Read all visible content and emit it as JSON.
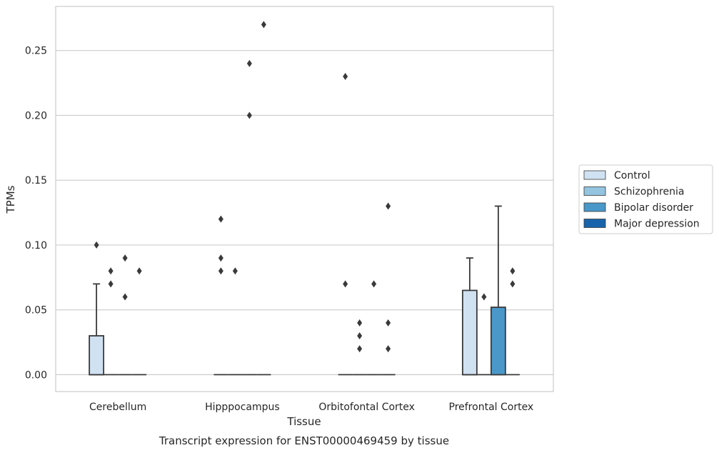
{
  "chart_data": {
    "type": "boxplot",
    "title": "",
    "caption": "Transcript expression for ENST00000469459 by tissue",
    "xlabel": "Tissue",
    "ylabel": "TPMs",
    "ylim": [
      -0.013,
      0.284
    ],
    "yticks": [
      0.0,
      0.05,
      0.1,
      0.15,
      0.2,
      0.25
    ],
    "ytick_labels": [
      "0.00",
      "0.05",
      "0.10",
      "0.15",
      "0.20",
      "0.25"
    ],
    "grid": "horizontal",
    "legend_position": "right-center",
    "categories": [
      "Cerebellum",
      "Hipppocampus",
      "Orbitofontal Cortex",
      "Prefrontal Cortex"
    ],
    "series": [
      {
        "name": "Control",
        "color": "#d0e1f2",
        "boxes": [
          {
            "q1": 0,
            "median": 0,
            "q3": 0.03,
            "whisker_low": 0,
            "whisker_high": 0.07,
            "outliers": [
              0.1
            ]
          },
          {
            "q1": 0,
            "median": 0,
            "q3": 0,
            "whisker_low": 0,
            "whisker_high": 0,
            "outliers": [
              0.08,
              0.09,
              0.12
            ]
          },
          {
            "q1": 0,
            "median": 0,
            "q3": 0,
            "whisker_low": 0,
            "whisker_high": 0,
            "outliers": [
              0.07,
              0.23
            ]
          },
          {
            "q1": 0,
            "median": 0,
            "q3": 0.065,
            "whisker_low": 0,
            "whisker_high": 0.09,
            "outliers": []
          }
        ]
      },
      {
        "name": "Schizophrenia",
        "color": "#94c4df",
        "boxes": [
          {
            "q1": 0,
            "median": 0,
            "q3": 0,
            "whisker_low": 0,
            "whisker_high": 0,
            "outliers": [
              0.07,
              0.08
            ]
          },
          {
            "q1": 0,
            "median": 0,
            "q3": 0,
            "whisker_low": 0,
            "whisker_high": 0,
            "outliers": [
              0.08
            ]
          },
          {
            "q1": 0,
            "median": 0,
            "q3": 0,
            "whisker_low": 0,
            "whisker_high": 0,
            "outliers": [
              0.02,
              0.03,
              0.04
            ]
          },
          {
            "q1": 0,
            "median": 0,
            "q3": 0,
            "whisker_low": 0,
            "whisker_high": 0,
            "outliers": [
              0.06
            ]
          }
        ]
      },
      {
        "name": "Bipolar disorder",
        "color": "#4a98c9",
        "boxes": [
          {
            "q1": 0,
            "median": 0,
            "q3": 0,
            "whisker_low": 0,
            "whisker_high": 0,
            "outliers": [
              0.06,
              0.09
            ]
          },
          {
            "q1": 0,
            "median": 0,
            "q3": 0,
            "whisker_low": 0,
            "whisker_high": 0,
            "outliers": [
              0.2,
              0.24
            ]
          },
          {
            "q1": 0,
            "median": 0,
            "q3": 0,
            "whisker_low": 0,
            "whisker_high": 0,
            "outliers": [
              0.07
            ]
          },
          {
            "q1": 0,
            "median": 0,
            "q3": 0.052,
            "whisker_low": 0,
            "whisker_high": 0.13,
            "outliers": []
          }
        ]
      },
      {
        "name": "Major depression",
        "color": "#1764ab",
        "boxes": [
          {
            "q1": 0,
            "median": 0,
            "q3": 0,
            "whisker_low": 0,
            "whisker_high": 0,
            "outliers": [
              0.08
            ]
          },
          {
            "q1": 0,
            "median": 0,
            "q3": 0,
            "whisker_low": 0,
            "whisker_high": 0,
            "outliers": [
              0.27
            ]
          },
          {
            "q1": 0,
            "median": 0,
            "q3": 0,
            "whisker_low": 0,
            "whisker_high": 0,
            "outliers": [
              0.02,
              0.04,
              0.13
            ]
          },
          {
            "q1": 0,
            "median": 0,
            "q3": 0,
            "whisker_low": 0,
            "whisker_high": 0,
            "outliers": [
              0.07,
              0.08
            ]
          }
        ]
      }
    ]
  }
}
